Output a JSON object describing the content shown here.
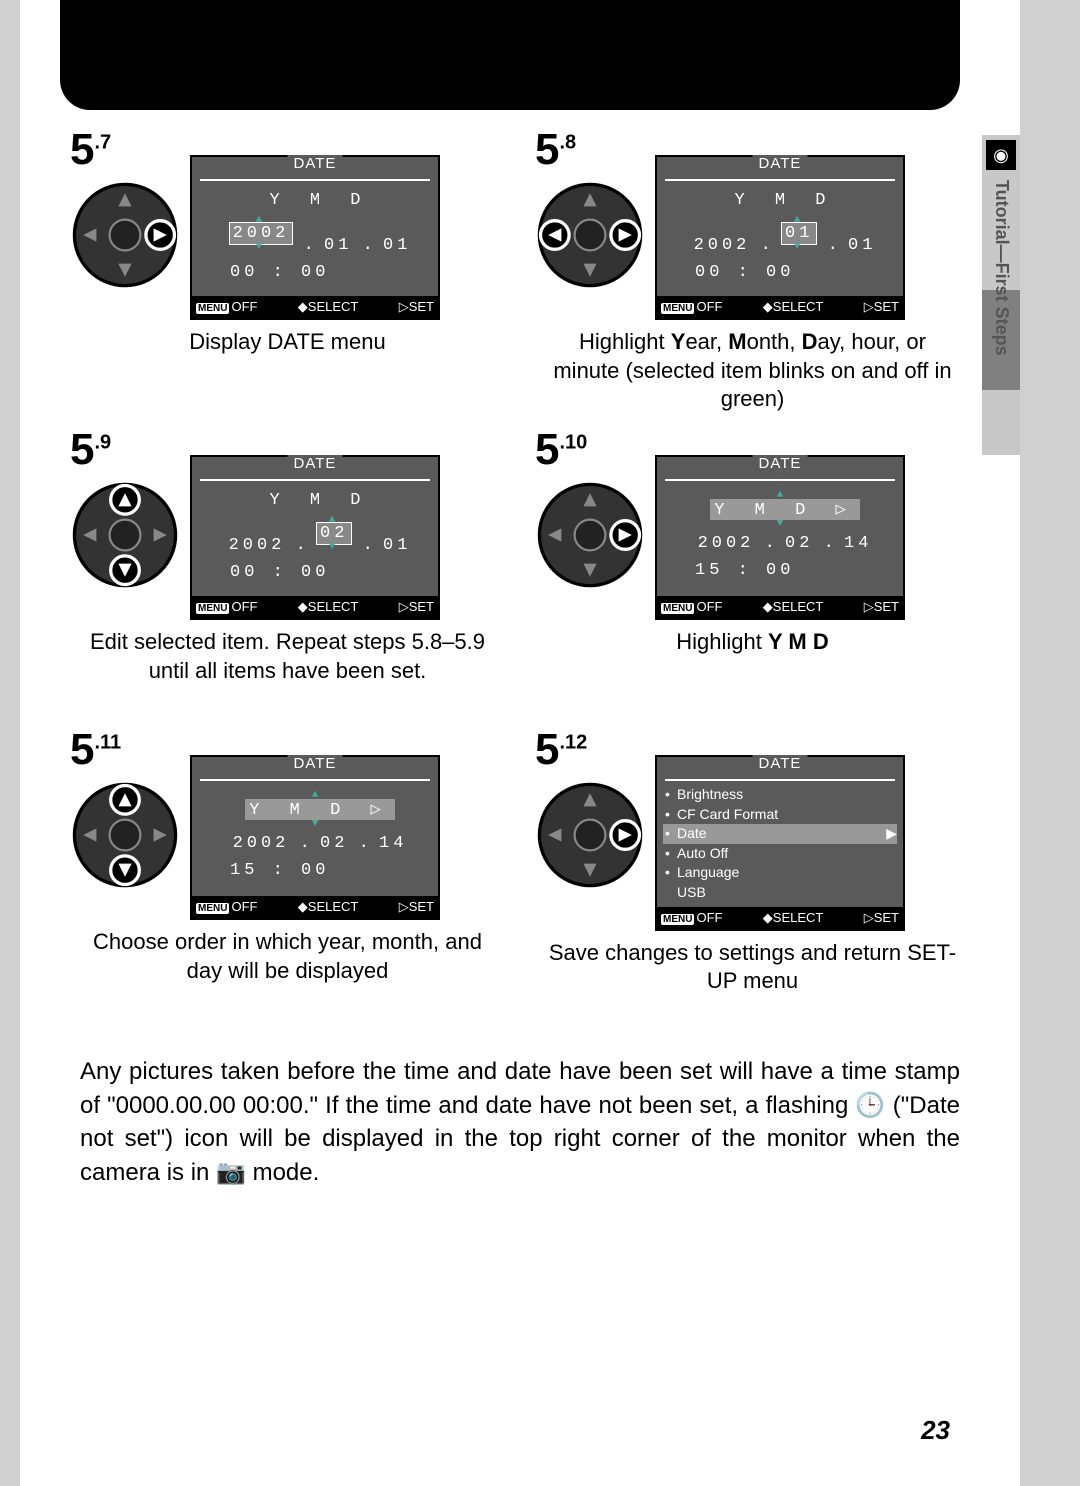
{
  "side_label": "Tutorial—First Steps",
  "page_number": "23",
  "lcd_title": "DATE",
  "ymd_header": "Y   M   D",
  "footer": {
    "off": "OFF",
    "select": "SELECT",
    "set": "SET",
    "menu": "MENU"
  },
  "steps": [
    {
      "num": "5",
      "sup": ".7",
      "date": "2002.01.01",
      "date_hl_idx": 0,
      "hl_single": "2002",
      "time": "00:00",
      "caption": "Display DATE menu",
      "dpad_hl": [
        "right"
      ]
    },
    {
      "num": "5",
      "sup": ".8",
      "date": "2002.01.01",
      "date_hl_idx": 1,
      "hl_single": "01",
      "time": "00:00",
      "caption_parts": [
        "Highlight ",
        "Y",
        "ear, ",
        "M",
        "onth, ",
        "D",
        "ay, hour, or minute (selected item blinks on and off in green)"
      ],
      "dpad_hl": [
        "left",
        "right"
      ]
    },
    {
      "num": "5",
      "sup": ".9",
      "date": "2002.02.01",
      "date_hl_idx": 1,
      "hl_single": "02",
      "time": "00:00",
      "caption": "Edit selected item.  Repeat steps 5.8–5.9 until all items have been set.",
      "dpad_hl": [
        "up",
        "down"
      ]
    },
    {
      "num": "5",
      "sup": ".10",
      "ymd_row_hl": true,
      "date": "2002.02.14",
      "time": "15:00",
      "caption_parts": [
        "Highlight ",
        "Y M D"
      ],
      "dpad_hl": [
        "right"
      ]
    },
    {
      "num": "5",
      "sup": ".11",
      "ymd_row_hl": true,
      "date": "2002.02.14",
      "time": "15:00",
      "caption": "Choose order in which year, month, and day will be displayed",
      "dpad_hl": [
        "up",
        "down"
      ]
    },
    {
      "num": "5",
      "sup": ".12",
      "menu": [
        "Brightness",
        "CF Card Format",
        "Date",
        "Auto Off",
        "Language",
        "USB"
      ],
      "menu_sel": 2,
      "caption": "Save changes to settings and return SET-UP menu",
      "dpad_hl": [
        "right"
      ]
    }
  ],
  "body_text": "Any pictures taken before the time and date have been set will have a time stamp of \"0000.00.00 00:00.\"  If the time and date have not been set, a flashing 🕒 (\"Date not set\") icon will be displayed in the top right corner of the monitor when the camera is in 📷 mode.",
  "colors": {
    "page_bg": "#ffffff",
    "outer_bg": "#d0d0d0",
    "lcd_bg": "#5a5a5a",
    "highlight": "#999999",
    "arrow_green": "#44aa99"
  }
}
